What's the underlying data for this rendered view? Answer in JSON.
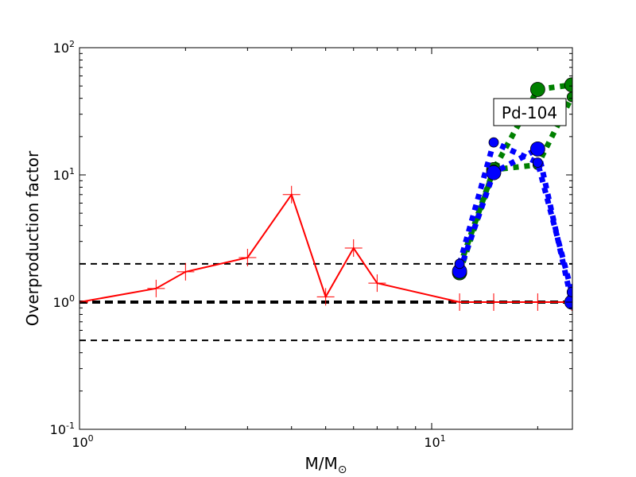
{
  "chart_data": {
    "type": "line",
    "xlabel": "M/M⊙",
    "ylabel": "Overproduction factor",
    "xscale": "log",
    "yscale": "log",
    "xlim": [
      1,
      25
    ],
    "ylim": [
      0.1,
      100
    ],
    "x_tick_labels": [
      {
        "value": 1,
        "label": "10",
        "exp": "0"
      },
      {
        "value": 10,
        "label": "10",
        "exp": "1"
      }
    ],
    "y_tick_labels": [
      {
        "value": 0.1,
        "label": "10",
        "exp": "-1"
      },
      {
        "value": 1,
        "label": "10",
        "exp": "0"
      },
      {
        "value": 10,
        "label": "10",
        "exp": "1"
      },
      {
        "value": 100,
        "label": "10",
        "exp": "2"
      }
    ],
    "annotation": "Pd-104",
    "reference_lines": [
      {
        "y": 2,
        "style": "dashed"
      },
      {
        "y": 1,
        "style": "dashed-thick"
      },
      {
        "y": 0.5,
        "style": "dashed"
      }
    ],
    "series": [
      {
        "color": "#ff0000",
        "style": "solid",
        "marker": "plus",
        "x": [
          1,
          1.65,
          2,
          3,
          4,
          5,
          6,
          7,
          12,
          15,
          20,
          25
        ],
        "y": [
          1.0,
          1.28,
          1.73,
          2.24,
          7.0,
          1.1,
          2.66,
          1.41,
          1.0,
          1.0,
          1.0,
          1.0
        ]
      },
      {
        "color": "#008000",
        "style": "dotted",
        "marker": "circle-large",
        "x": [
          12,
          15,
          20,
          25
        ],
        "y": [
          1.7,
          11,
          47,
          51
        ]
      },
      {
        "color": "#008000",
        "style": "dotted",
        "marker": "circle-small",
        "x": [
          12,
          15,
          20,
          25
        ],
        "y": [
          1.9,
          11,
          12,
          41
        ]
      },
      {
        "color": "#0000ff",
        "style": "dotted",
        "marker": "circle-large",
        "x": [
          12,
          15,
          20,
          25
        ],
        "y": [
          1.75,
          10.4,
          16,
          1.0
        ]
      },
      {
        "color": "#0000ff",
        "style": "dotted",
        "marker": "circle-small",
        "x": [
          12,
          15,
          20,
          25
        ],
        "y": [
          2.0,
          18,
          12.5,
          1.2
        ]
      }
    ]
  }
}
